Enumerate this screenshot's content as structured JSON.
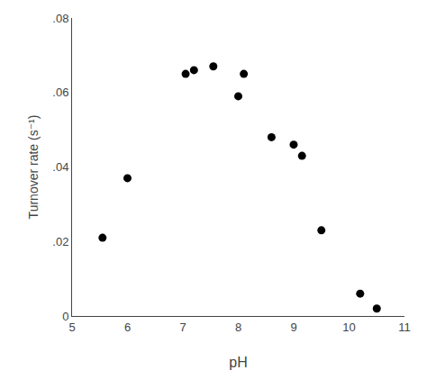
{
  "chart_data": {
    "type": "scatter",
    "x": [
      5.55,
      6.0,
      7.05,
      7.2,
      7.55,
      8.0,
      8.1,
      8.6,
      9.0,
      9.15,
      9.5,
      10.2,
      10.5
    ],
    "values": [
      0.021,
      0.037,
      0.065,
      0.066,
      0.067,
      0.059,
      0.065,
      0.048,
      0.046,
      0.043,
      0.023,
      0.006,
      0.002
    ],
    "xlabel": "pH",
    "ylabel": "Turnover rate (s⁻¹)",
    "xlim": [
      5,
      11
    ],
    "ylim": [
      0,
      0.08
    ],
    "xticks": [
      5,
      6,
      7,
      8,
      9,
      10,
      11
    ],
    "yticks": [
      0,
      {
        "value": 0.02,
        "label": ".02"
      },
      {
        "value": 0.04,
        "label": ".04"
      },
      {
        "value": 0.06,
        "label": ".06"
      },
      {
        "value": 0.08,
        "label": ".08"
      }
    ],
    "color": "black",
    "marker": "circle",
    "grid": false
  }
}
